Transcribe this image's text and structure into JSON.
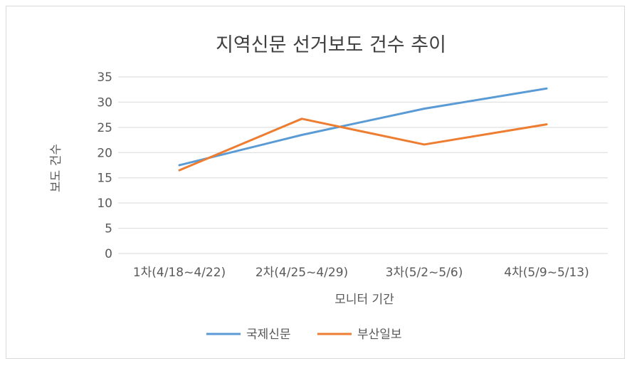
{
  "chart_data": {
    "type": "line",
    "title": "지역신문 선거보도 건수 추이",
    "xlabel": "모니터 기간",
    "ylabel": "보도 건수",
    "categories": [
      "1차(4/18~4/22)",
      "2차(4/25~4/29)",
      "3차(5/2~5/6)",
      "4차(5/9~5/13)"
    ],
    "ylim": [
      0,
      35
    ],
    "yticks": [
      0,
      5,
      10,
      15,
      20,
      25,
      30,
      35
    ],
    "grid": true,
    "legend_position": "bottom",
    "series": [
      {
        "name": "국제신문",
        "color": "#5b9bd5",
        "values": [
          17.5,
          23.5,
          28.7,
          32.7
        ]
      },
      {
        "name": "부산일보",
        "color": "#ed7d31",
        "values": [
          16.5,
          26.7,
          21.6,
          25.6
        ]
      }
    ]
  }
}
